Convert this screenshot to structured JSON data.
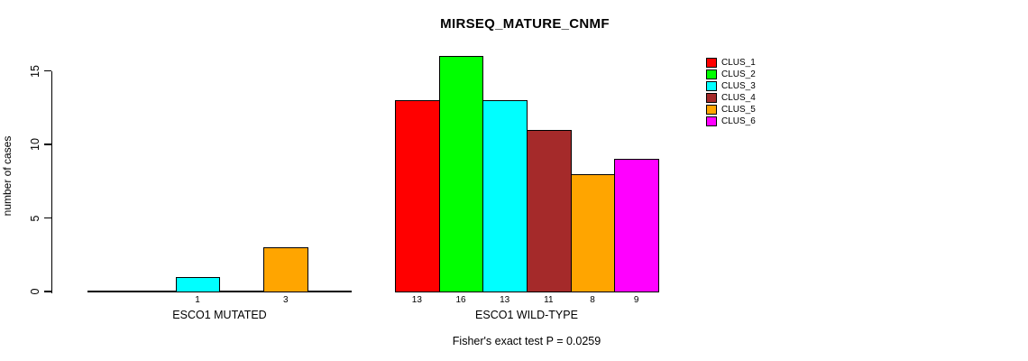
{
  "chart_data": {
    "type": "bar",
    "title": "MIRSEQ_MATURE_CNMF",
    "ylabel": "number of cases",
    "yticks": [
      0,
      5,
      10,
      15
    ],
    "ylim": [
      0,
      16
    ],
    "grid": false,
    "legend": {
      "position": "top-right",
      "entries": [
        {
          "label": "CLUS_1",
          "color": "#FF0000"
        },
        {
          "label": "CLUS_2",
          "color": "#00FF00"
        },
        {
          "label": "CLUS_3",
          "color": "#00FFFF"
        },
        {
          "label": "CLUS_4",
          "color": "#A52A2A"
        },
        {
          "label": "CLUS_5",
          "color": "#FFA500"
        },
        {
          "label": "CLUS_6",
          "color": "#FF00FF"
        }
      ]
    },
    "categories": [
      "CLUS_1",
      "CLUS_2",
      "CLUS_3",
      "CLUS_4",
      "CLUS_5",
      "CLUS_6"
    ],
    "groups": [
      {
        "label": "ESCO1 MUTATED",
        "values": [
          0,
          0,
          1,
          0,
          3,
          0
        ]
      },
      {
        "label": "ESCO1 WILD-TYPE",
        "values": [
          13,
          16,
          13,
          11,
          8,
          9
        ]
      }
    ],
    "annotation": "Fisher's exact test P = 0.0259"
  }
}
